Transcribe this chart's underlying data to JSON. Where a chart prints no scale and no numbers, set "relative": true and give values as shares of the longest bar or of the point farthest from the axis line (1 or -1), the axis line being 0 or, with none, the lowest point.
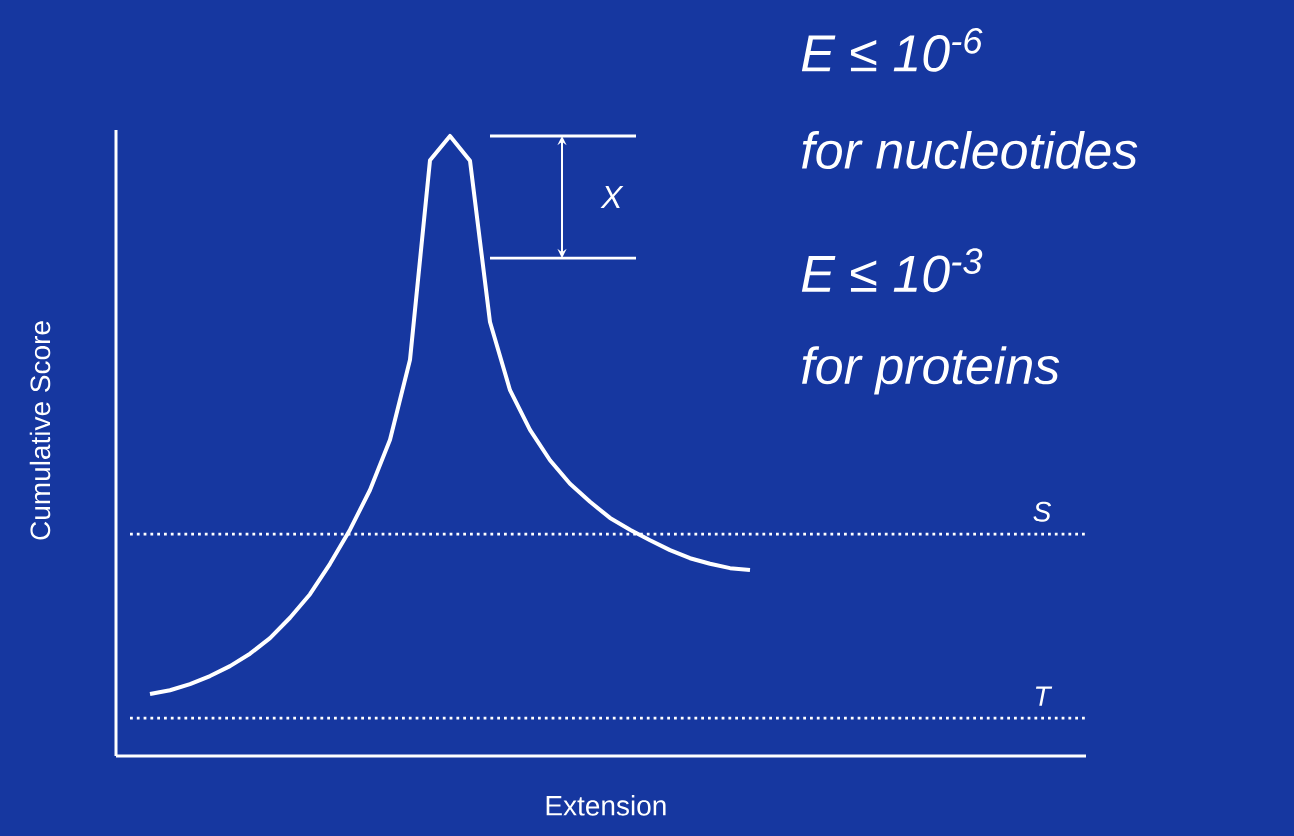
{
  "chart_data": {
    "type": "line",
    "relative": true,
    "xlabel": "Extension",
    "ylabel": "Cumulative Score",
    "marker": "none",
    "categories": [
      null,
      null,
      null,
      null,
      null,
      null,
      null,
      null,
      null,
      null,
      null,
      null,
      null,
      null,
      null,
      null,
      null,
      null,
      null,
      null,
      null,
      null,
      null,
      null,
      null,
      null,
      null,
      null,
      null,
      null,
      null
    ],
    "series": [
      {
        "color": "#ffffff",
        "values": [
          0.1,
          0.106,
          0.116,
          0.129,
          0.145,
          0.165,
          0.19,
          0.223,
          0.261,
          0.31,
          0.365,
          0.429,
          0.51,
          0.639,
          0.961,
          1.0,
          0.96,
          0.7,
          0.59,
          0.526,
          0.477,
          0.439,
          0.41,
          0.384,
          0.365,
          0.348,
          0.332,
          0.319,
          0.31,
          0.303,
          0.3
        ]
      }
    ],
    "ref_lines": [
      {
        "axis": "y",
        "value": 0.358,
        "label": "S",
        "color": "#ffffff",
        "line_style": "dotted"
      },
      {
        "axis": "y",
        "value": 0.061,
        "label": "T",
        "color": "#ffffff",
        "line_style": "dotted"
      },
      {
        "axis": "y",
        "value": 1.0,
        "color": "#ffffff",
        "line_style": "solid"
      },
      {
        "axis": "y",
        "value": 0.803,
        "color": "#ffffff",
        "line_style": "solid"
      }
    ],
    "annotations": [
      "X",
      "E ≤ 10$^{-6}$",
      "for nucleotides",
      "E ≤ 10$^{-3}$",
      "for proteins"
    ]
  }
}
